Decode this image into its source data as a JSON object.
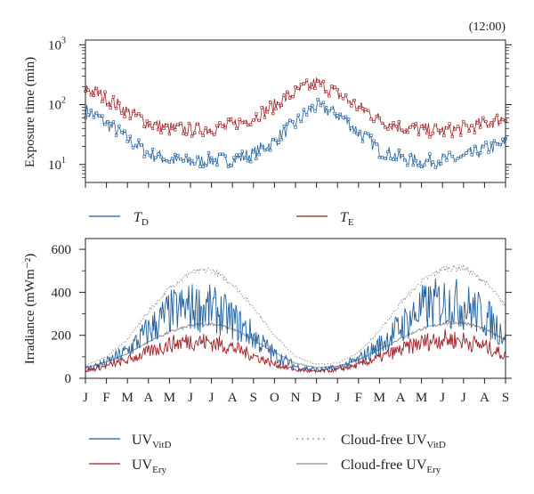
{
  "chart_data": [
    {
      "type": "line",
      "annotation": "(12:00)",
      "ylabel": "Exposure time (min)",
      "yscale": "log",
      "ylim": [
        5,
        1200
      ],
      "yticks": [
        {
          "value": 10,
          "base": "10",
          "exp": "1"
        },
        {
          "value": 100,
          "base": "10",
          "exp": "2"
        },
        {
          "value": 1000,
          "base": "10",
          "exp": "3"
        }
      ],
      "x_month_count": 20,
      "series": [
        {
          "name_main": "T",
          "name_sub": "D",
          "color": "#1f5f9f",
          "monthly": [
            80,
            48,
            26,
            15,
            12,
            11,
            12,
            12,
            15,
            24,
            48,
            95,
            68,
            34,
            17,
            13,
            11,
            12,
            13,
            18,
            22
          ]
        },
        {
          "name_main": "T",
          "name_sub": "E",
          "color": "#a01e24",
          "monthly": [
            190,
            125,
            75,
            48,
            40,
            38,
            40,
            45,
            60,
            95,
            160,
            230,
            150,
            90,
            55,
            42,
            38,
            36,
            40,
            48,
            60
          ]
        }
      ]
    },
    {
      "type": "line",
      "ylabel": "Irradiance (mWm⁻²)",
      "ylim": [
        0,
        650
      ],
      "yticks": [
        0,
        200,
        400,
        600
      ],
      "xticklabels": [
        "J",
        "F",
        "M",
        "A",
        "M",
        "J",
        "J",
        "A",
        "S",
        "O",
        "N",
        "D",
        "J",
        "F",
        "M",
        "A",
        "M",
        "J",
        "J",
        "A",
        "S"
      ],
      "series": [
        {
          "name_main": "UV",
          "name_sub": "VitD",
          "color": "#1f5f9f",
          "style": "solid",
          "monthly": [
            50,
            85,
            150,
            260,
            360,
            390,
            380,
            320,
            230,
            130,
            65,
            45,
            55,
            100,
            180,
            280,
            380,
            420,
            400,
            340,
            240
          ]
        },
        {
          "name_main": "UV",
          "name_sub": "Ery",
          "color": "#a01e24",
          "style": "solid",
          "monthly": [
            40,
            65,
            95,
            140,
            180,
            200,
            190,
            165,
            120,
            75,
            45,
            35,
            45,
            70,
            110,
            150,
            190,
            210,
            200,
            170,
            120
          ]
        },
        {
          "name_main": "Cloud-free UV",
          "name_sub": "VitD",
          "color": "#8a8a8a",
          "style": "dotted",
          "monthly": [
            60,
            100,
            180,
            310,
            420,
            490,
            505,
            440,
            330,
            200,
            100,
            65,
            70,
            120,
            220,
            350,
            450,
            510,
            515,
            450,
            340
          ]
        },
        {
          "name_main": "Cloud-free UV",
          "name_sub": "Ery",
          "color": "#8a8a8a",
          "style": "solid",
          "monthly": [
            50,
            75,
            115,
            170,
            215,
            245,
            255,
            230,
            180,
            120,
            70,
            50,
            55,
            85,
            135,
            185,
            230,
            255,
            260,
            230,
            180
          ]
        }
      ]
    }
  ]
}
